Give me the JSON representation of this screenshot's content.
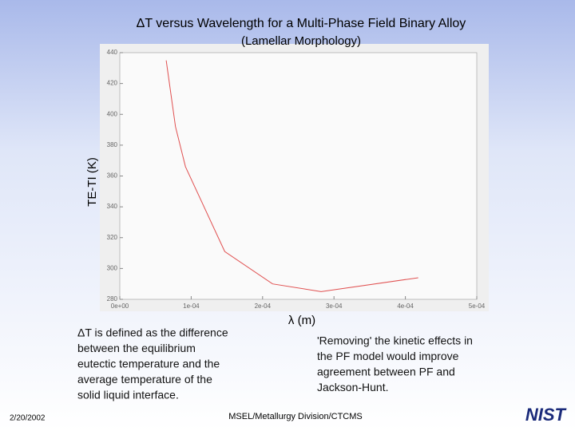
{
  "chart_data": {
    "type": "line",
    "title": "ΔT versus Wavelength for a Multi-Phase Field Binary Alloy",
    "subtitle": "(Lamellar Morphology)",
    "x_label": "λ (m)",
    "y_label": "TE-TI (K)",
    "x": [
      6.5e-05,
      7.8e-05,
      9.2e-05,
      0.000147,
      0.000214,
      0.000282,
      0.000418
    ],
    "series": [
      {
        "color": "#e05050",
        "values": [
          435,
          392,
          366,
          311,
          290,
          285,
          294
        ]
      }
    ],
    "xlim": [
      0,
      0.0005
    ],
    "xticks": [
      {
        "value": 0,
        "label": "0e+00"
      },
      {
        "value": 0.0001,
        "label": "1e-04"
      },
      {
        "value": 0.0002,
        "label": "2e-04"
      },
      {
        "value": 0.0003,
        "label": "3e-04"
      },
      {
        "value": 0.0004,
        "label": "4e-04"
      },
      {
        "value": 0.0005,
        "label": "5e-04"
      }
    ],
    "ylim": [
      280,
      440
    ],
    "yticks": [
      280,
      300,
      320,
      340,
      360,
      380,
      400,
      420,
      440
    ]
  },
  "notes": {
    "left": [
      "ΔT is defined as the difference",
      "between the equilibrium",
      "eutectic temperature and the",
      "average temperature of the",
      "solid liquid interface."
    ],
    "right": [
      "'Removing' the kinetic effects in",
      "the PF model would improve",
      "agreement between PF and",
      "Jackson-Hunt."
    ]
  },
  "footer": {
    "date": "2/20/2002",
    "center": "MSEL/Metallurgy Division/CTCMS",
    "logo": "NIST"
  }
}
